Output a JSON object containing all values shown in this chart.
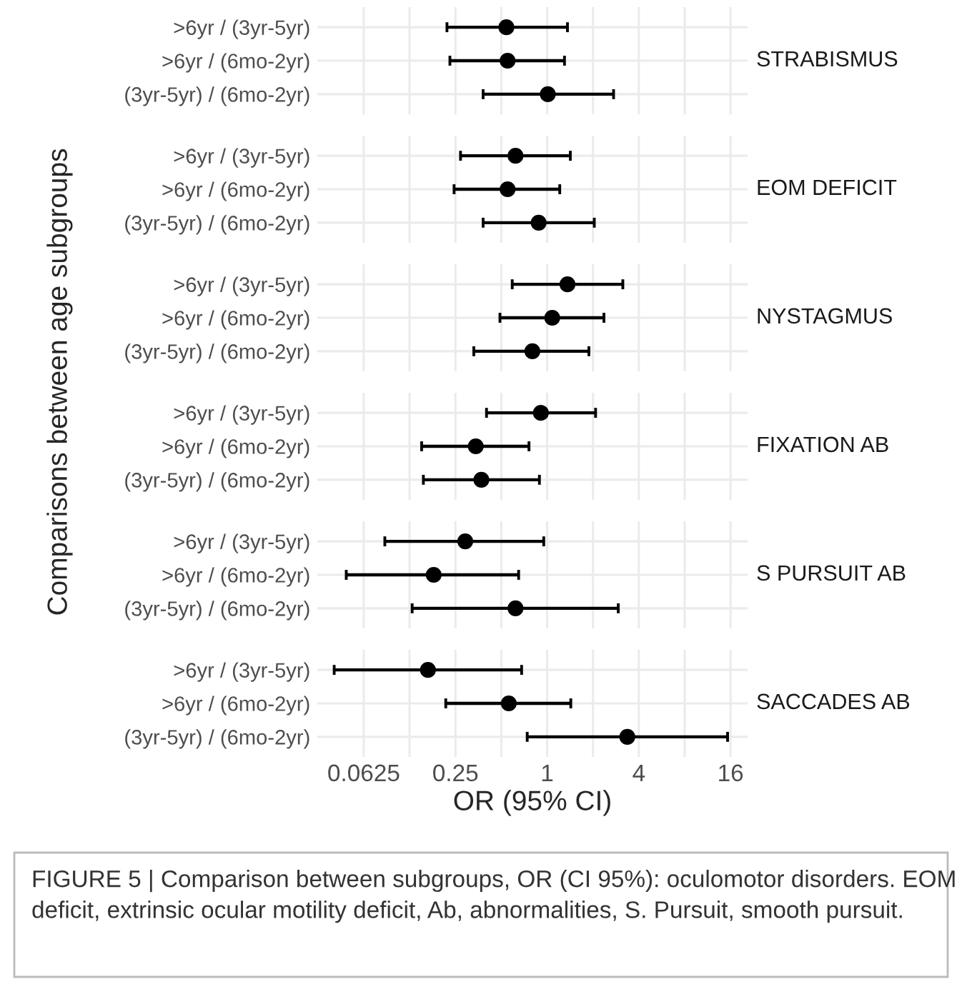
{
  "chart_data": [
    {
      "type": "scatter",
      "orientation": "horizontal",
      "title": "STRABISMUS",
      "ylabel": "Comparisons between age subgroups",
      "categories": [
        ">6yr / (3yr-5yr)",
        ">6yr / (6mo-2yr)",
        "(3yr-5yr) / (6mo-2yr)"
      ],
      "values": [
        0.54,
        0.55,
        1.01
      ],
      "errors": [
        [
          0.22,
          1.36
        ],
        [
          0.23,
          1.3
        ],
        [
          0.38,
          2.73
        ]
      ],
      "color": "#000000",
      "marker": "circle",
      "log": "x",
      "xlim": [
        0.031,
        20.7
      ],
      "xticks": [
        0.0625,
        {
          "value": 0.125,
          "label": null
        },
        0.25,
        {
          "value": 0.5,
          "label": null
        },
        1,
        {
          "value": 2,
          "label": null
        },
        4,
        {
          "value": 8,
          "label": null
        },
        16
      ],
      "grid": true,
      "tick_labels": "y"
    },
    {
      "type": "scatter",
      "orientation": "horizontal",
      "title": "EOM DEFICIT",
      "categories": [
        ">6yr / (3yr-5yr)",
        ">6yr / (6mo-2yr)",
        "(3yr-5yr) / (6mo-2yr)"
      ],
      "values": [
        0.62,
        0.55,
        0.88
      ],
      "errors": [
        [
          0.27,
          1.42
        ],
        [
          0.245,
          1.21
        ],
        [
          0.38,
          2.04
        ]
      ],
      "color": "#000000",
      "marker": "circle",
      "log": "x",
      "xlim": [
        0.031,
        20.7
      ],
      "xticks": [
        0.0625,
        {
          "value": 0.125,
          "label": null
        },
        0.25,
        {
          "value": 0.5,
          "label": null
        },
        1,
        {
          "value": 2,
          "label": null
        },
        4,
        {
          "value": 8,
          "label": null
        },
        16
      ],
      "grid": true,
      "tick_labels": "y"
    },
    {
      "type": "scatter",
      "orientation": "horizontal",
      "title": "NYSTAGMUS",
      "categories": [
        ">6yr / (3yr-5yr)",
        ">6yr / (6mo-2yr)",
        "(3yr-5yr) / (6mo-2yr)"
      ],
      "values": [
        1.36,
        1.08,
        0.8
      ],
      "errors": [
        [
          0.59,
          3.14
        ],
        [
          0.49,
          2.36
        ],
        [
          0.33,
          1.88
        ]
      ],
      "color": "#000000",
      "marker": "circle",
      "log": "x",
      "xlim": [
        0.031,
        20.7
      ],
      "xticks": [
        0.0625,
        {
          "value": 0.125,
          "label": null
        },
        0.25,
        {
          "value": 0.5,
          "label": null
        },
        1,
        {
          "value": 2,
          "label": null
        },
        4,
        {
          "value": 8,
          "label": null
        },
        16
      ],
      "grid": true,
      "tick_labels": "y"
    },
    {
      "type": "scatter",
      "orientation": "horizontal",
      "title": "FIXATION AB",
      "categories": [
        ">6yr / (3yr-5yr)",
        ">6yr / (6mo-2yr)",
        "(3yr-5yr) / (6mo-2yr)"
      ],
      "values": [
        0.91,
        0.34,
        0.37
      ],
      "errors": [
        [
          0.4,
          2.08
        ],
        [
          0.15,
          0.76
        ],
        [
          0.154,
          0.89
        ]
      ],
      "color": "#000000",
      "marker": "circle",
      "log": "x",
      "xlim": [
        0.031,
        20.7
      ],
      "xticks": [
        0.0625,
        {
          "value": 0.125,
          "label": null
        },
        0.25,
        {
          "value": 0.5,
          "label": null
        },
        1,
        {
          "value": 2,
          "label": null
        },
        4,
        {
          "value": 8,
          "label": null
        },
        16
      ],
      "grid": true,
      "tick_labels": "y"
    },
    {
      "type": "scatter",
      "orientation": "horizontal",
      "title": "S PURSUIT AB",
      "categories": [
        ">6yr / (3yr-5yr)",
        ">6yr / (6mo-2yr)",
        "(3yr-5yr) / (6mo-2yr)"
      ],
      "values": [
        0.29,
        0.18,
        0.62
      ],
      "errors": [
        [
          0.086,
          0.95
        ],
        [
          0.048,
          0.65
        ],
        [
          0.13,
          2.93
        ]
      ],
      "color": "#000000",
      "marker": "circle",
      "log": "x",
      "xlim": [
        0.031,
        20.7
      ],
      "xticks": [
        0.0625,
        {
          "value": 0.125,
          "label": null
        },
        0.25,
        {
          "value": 0.5,
          "label": null
        },
        1,
        {
          "value": 2,
          "label": null
        },
        4,
        {
          "value": 8,
          "label": null
        },
        16
      ],
      "grid": true,
      "tick_labels": "y"
    },
    {
      "type": "scatter",
      "orientation": "horizontal",
      "title": "SACCADES AB",
      "xlabel": "OR (95% CI)",
      "categories": [
        ">6yr / (3yr-5yr)",
        ">6yr / (6mo-2yr)",
        "(3yr-5yr) / (6mo-2yr)"
      ],
      "values": [
        0.165,
        0.56,
        3.36
      ],
      "errors": [
        [
          0.04,
          0.68
        ],
        [
          0.216,
          1.43
        ],
        [
          0.74,
          15.3
        ]
      ],
      "color": "#000000",
      "marker": "circle",
      "log": "x",
      "xlim": [
        0.031,
        20.7
      ],
      "xticks": [
        0.0625,
        {
          "value": 0.125,
          "label": null
        },
        0.25,
        {
          "value": 0.5,
          "label": null
        },
        1,
        {
          "value": 2,
          "label": null
        },
        4,
        {
          "value": 8,
          "label": null
        },
        16
      ],
      "grid": true,
      "annotations": [
        "FIGURE 5 | Comparison between subgroups, OR (CI 95%): oculomotor disorders. EOM deficit, extrinsic ocular motility deficit, Ab, abnormalities, S. Pursuit, smooth pursuit."
      ]
    }
  ]
}
